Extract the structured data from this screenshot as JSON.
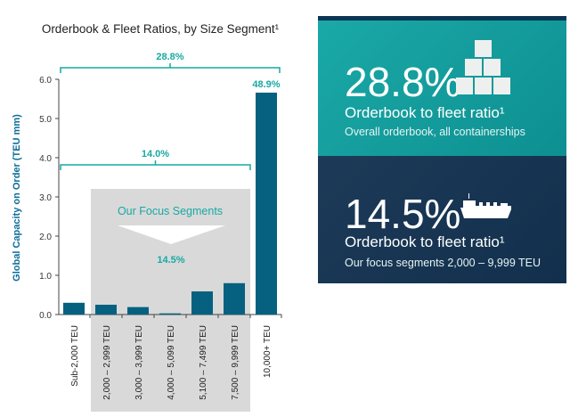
{
  "chart_data": {
    "type": "bar",
    "title": "Orderbook & Fleet Ratios, by Size Segment¹",
    "ylabel": "Global Capacity on Order (TEU mm)",
    "xlabel": "",
    "ylim": [
      0,
      6
    ],
    "yticks": [
      "0.0",
      "1.0",
      "2.0",
      "3.0",
      "4.0",
      "5.0",
      "6.0"
    ],
    "categories": [
      "Sub-2,000 TEU",
      "2,000 – 2,999 TEU",
      "3,000 – 3,999 TEU",
      "4,000 – 5,099 TEU",
      "5,100 – 7,499 TEU",
      "7,500 – 9,999 TEU",
      "10,000+ TEU"
    ],
    "values": [
      0.3,
      0.25,
      0.19,
      0.03,
      0.59,
      0.8,
      5.66
    ],
    "bar_color": "#05617f",
    "accent_color": "#17a9a3",
    "annotations": {
      "overall": "28.8%",
      "sub_10000": "14.0%",
      "largest": "48.9%",
      "focus_label": "Our Focus Segments",
      "focus_ratio": "14.5%"
    },
    "grid": false
  },
  "panel": {
    "top": {
      "value": "28.8%",
      "label": "Orderbook to fleet ratio¹",
      "desc": "Overall orderbook, all containerships",
      "icon": "stacked-containers-icon"
    },
    "bottom": {
      "value": "14.5%",
      "label": "Orderbook to fleet ratio¹",
      "desc": "Our focus segments 2,000 – 9,999 TEU",
      "icon": "container-ship-icon"
    }
  }
}
